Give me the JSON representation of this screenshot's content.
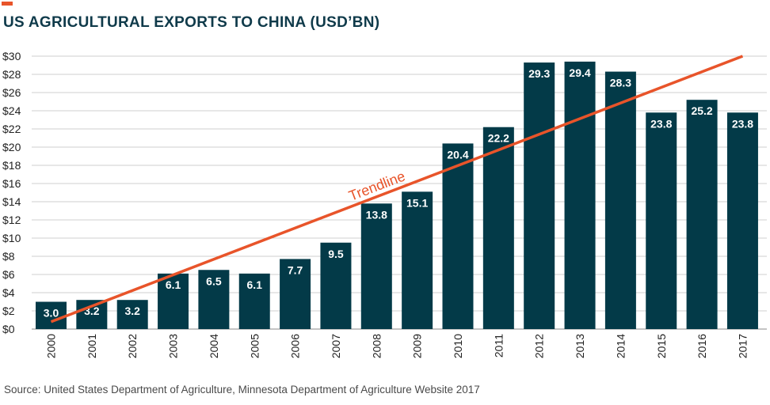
{
  "header": {
    "title": "US AGRICULTURAL EXPORTS TO CHINA (USD’BN)"
  },
  "footer": {
    "source": "Source: United States Department of Agriculture, Minnesota Department of Agriculture Website 2017"
  },
  "colors": {
    "bar": "#033a48",
    "trendline": "#e8542a",
    "title": "#0f3a4a",
    "grid": "#cfcfcf"
  },
  "chart_data": {
    "type": "bar",
    "title": "US AGRICULTURAL EXPORTS TO CHINA (USD’BN)",
    "xlabel": "",
    "ylabel": "",
    "categories": [
      "2000",
      "2001",
      "2002",
      "2003",
      "2004",
      "2005",
      "2006",
      "2007",
      "2008",
      "2009",
      "2010",
      "2011",
      "2012",
      "2013",
      "2014",
      "2015",
      "2016",
      "2017"
    ],
    "values": [
      3.0,
      3.2,
      3.2,
      6.1,
      6.5,
      6.1,
      7.7,
      9.5,
      13.8,
      15.1,
      20.4,
      22.2,
      29.3,
      29.4,
      28.3,
      23.8,
      25.2,
      23.8
    ],
    "value_labels": [
      "3.0",
      "3.2",
      "3.2",
      "6.1",
      "6.5",
      "6.1",
      "7.7",
      "9.5",
      "13.8",
      "15.1",
      "20.4",
      "22.2",
      "29.3",
      "29.4",
      "28.3",
      "23.8",
      "25.2",
      "23.8"
    ],
    "ylim": [
      0,
      30
    ],
    "yticks": [
      0,
      2,
      4,
      6,
      8,
      10,
      12,
      14,
      16,
      18,
      20,
      22,
      24,
      26,
      28,
      30
    ],
    "ytick_labels": [
      "$0",
      "$2",
      "$4",
      "$6",
      "$8",
      "$10",
      "$12",
      "$14",
      "$16",
      "$18",
      "$20",
      "$22",
      "$24",
      "$26",
      "$28",
      "$30"
    ],
    "grid": true,
    "trendline": {
      "label": "Trendline",
      "start": {
        "x": "2000",
        "y": 0.8
      },
      "end": {
        "x": "2017",
        "y": 30.0
      }
    }
  }
}
